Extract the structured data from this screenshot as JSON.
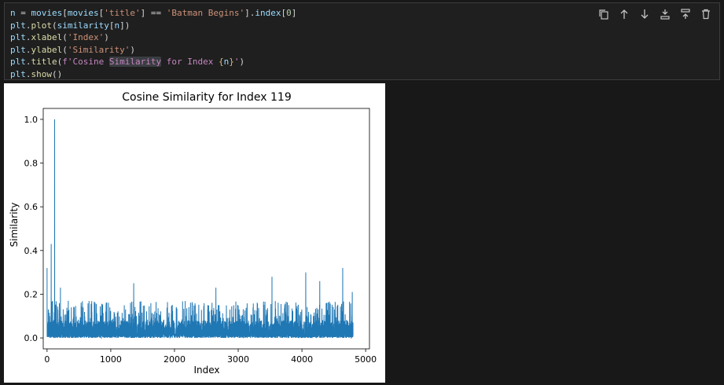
{
  "code_cell": {
    "lines": [
      {
        "tokens": [
          {
            "t": "n",
            "c": "t-var"
          },
          {
            "t": " = ",
            "c": "t-pl"
          },
          {
            "t": "movies",
            "c": "t-var"
          },
          {
            "t": "[",
            "c": "t-pl"
          },
          {
            "t": "movies",
            "c": "t-var"
          },
          {
            "t": "[",
            "c": "t-pl"
          },
          {
            "t": "'title'",
            "c": "t-str"
          },
          {
            "t": "] == ",
            "c": "t-pl"
          },
          {
            "t": "'Batman Begins'",
            "c": "t-str"
          },
          {
            "t": "].",
            "c": "t-pl"
          },
          {
            "t": "index",
            "c": "t-var"
          },
          {
            "t": "[",
            "c": "t-pl"
          },
          {
            "t": "0",
            "c": "t-num"
          },
          {
            "t": "]",
            "c": "t-pl"
          }
        ]
      },
      {
        "tokens": [
          {
            "t": "plt",
            "c": "t-var"
          },
          {
            "t": ".",
            "c": "t-pl"
          },
          {
            "t": "plot",
            "c": "t-fn"
          },
          {
            "t": "(",
            "c": "t-pl"
          },
          {
            "t": "similarity",
            "c": "t-var"
          },
          {
            "t": "[",
            "c": "t-pl"
          },
          {
            "t": "n",
            "c": "t-var"
          },
          {
            "t": "])",
            "c": "t-pl"
          }
        ]
      },
      {
        "tokens": [
          {
            "t": "plt",
            "c": "t-var"
          },
          {
            "t": ".",
            "c": "t-pl"
          },
          {
            "t": "xlabel",
            "c": "t-fn"
          },
          {
            "t": "(",
            "c": "t-pl"
          },
          {
            "t": "'Index'",
            "c": "t-str"
          },
          {
            "t": ")",
            "c": "t-pl"
          }
        ]
      },
      {
        "tokens": [
          {
            "t": "plt",
            "c": "t-var"
          },
          {
            "t": ".",
            "c": "t-pl"
          },
          {
            "t": "ylabel",
            "c": "t-fn"
          },
          {
            "t": "(",
            "c": "t-pl"
          },
          {
            "t": "'Similarity'",
            "c": "t-str"
          },
          {
            "t": ")",
            "c": "t-pl"
          }
        ]
      },
      {
        "tokens": [
          {
            "t": "plt",
            "c": "t-var"
          },
          {
            "t": ".",
            "c": "t-pl"
          },
          {
            "t": "title",
            "c": "t-fn"
          },
          {
            "t": "(",
            "c": "t-pl"
          },
          {
            "t": "f'Cosine ",
            "c": "t-fstr"
          },
          {
            "t": "Similarity",
            "c": "t-fstr hl"
          },
          {
            "t": " for Index ",
            "c": "t-fstr"
          },
          {
            "t": "{",
            "c": "t-brc"
          },
          {
            "t": "n",
            "c": "t-var"
          },
          {
            "t": "}",
            "c": "t-brc"
          },
          {
            "t": "'",
            "c": "t-fstr"
          },
          {
            "t": ")",
            "c": "t-pl"
          }
        ]
      },
      {
        "tokens": [
          {
            "t": "plt",
            "c": "t-var"
          },
          {
            "t": ".",
            "c": "t-pl"
          },
          {
            "t": "show",
            "c": "t-fn"
          },
          {
            "t": "()",
            "c": "t-pl"
          }
        ]
      }
    ]
  },
  "toolbar": {
    "buttons": [
      {
        "name": "copy-icon-button",
        "icon": "copy-icon"
      },
      {
        "name": "move-up-button",
        "icon": "arrow-up-icon"
      },
      {
        "name": "move-down-button",
        "icon": "arrow-down-icon"
      },
      {
        "name": "insert-below-button",
        "icon": "insert-below-icon"
      },
      {
        "name": "insert-above-button",
        "icon": "insert-above-icon"
      },
      {
        "name": "delete-button",
        "icon": "trash-icon"
      }
    ]
  },
  "chart_data": {
    "type": "line",
    "title": "Cosine Similarity for Index 119",
    "xlabel": "Index",
    "ylabel": "Similarity",
    "xlim": [
      -60,
      5060
    ],
    "ylim": [
      -0.05,
      1.05
    ],
    "xticks": [
      0,
      1000,
      2000,
      3000,
      4000,
      5000
    ],
    "yticks": [
      0.0,
      0.2,
      0.4,
      0.6,
      0.8,
      1.0
    ],
    "yticklabels": [
      "0.0",
      "0.2",
      "0.4",
      "0.6",
      "0.8",
      "1.0"
    ],
    "color": "#1f77b4",
    "n_points": 4803,
    "peaks": [
      {
        "x": 0,
        "y": 0.32
      },
      {
        "x": 65,
        "y": 0.43
      },
      {
        "x": 119,
        "y": 1.0
      },
      {
        "x": 210,
        "y": 0.23
      },
      {
        "x": 1360,
        "y": 0.25
      },
      {
        "x": 2650,
        "y": 0.23
      },
      {
        "x": 3530,
        "y": 0.28
      },
      {
        "x": 4060,
        "y": 0.3
      },
      {
        "x": 4280,
        "y": 0.26
      },
      {
        "x": 4640,
        "y": 0.32
      },
      {
        "x": 4790,
        "y": 0.21
      }
    ],
    "baseline": 0.08
  }
}
